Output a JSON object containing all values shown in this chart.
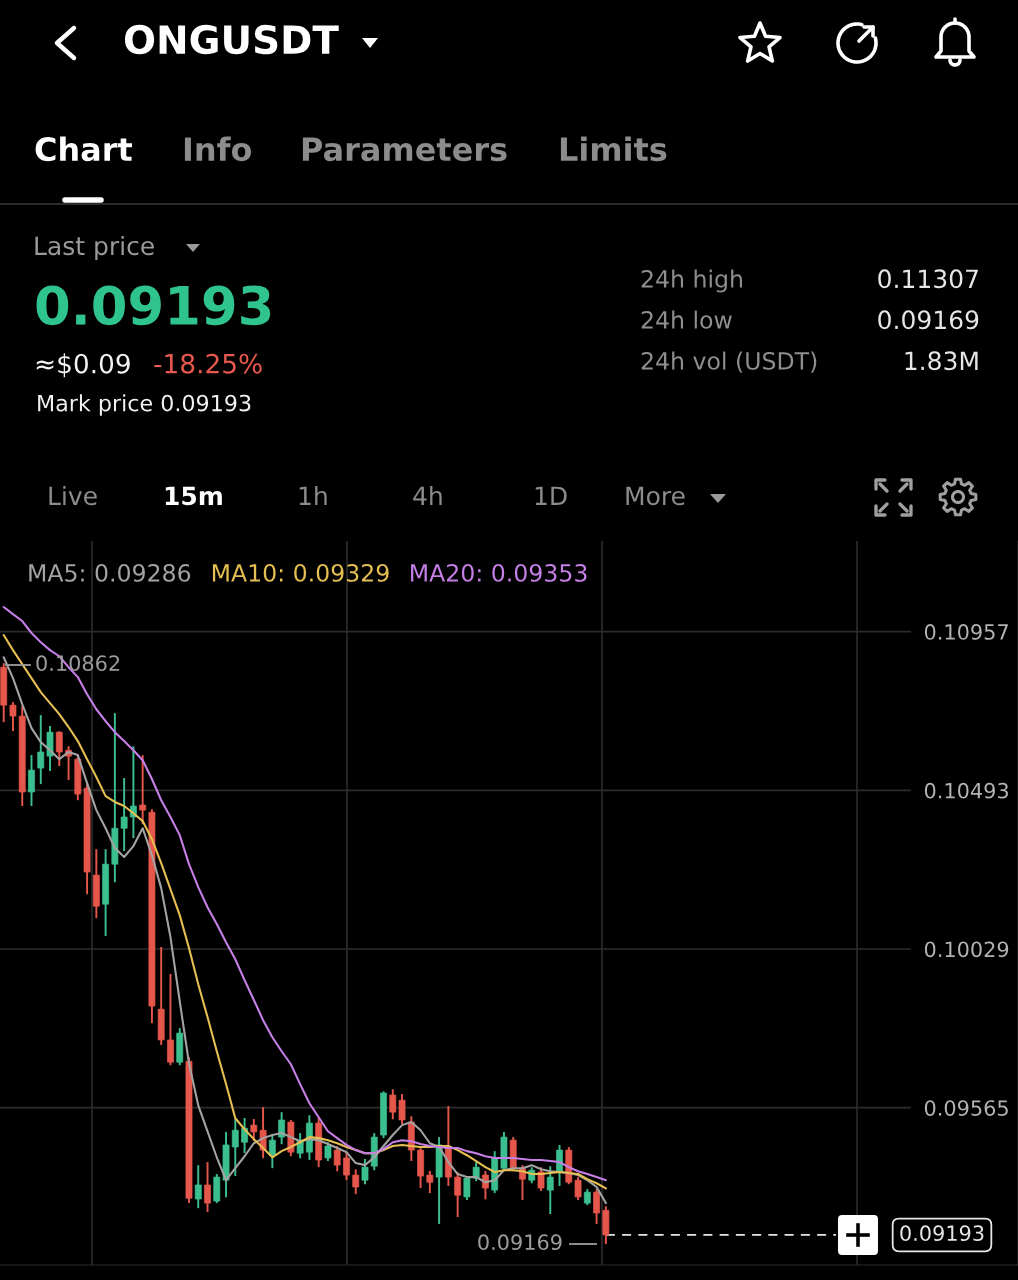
{
  "chart_data": {
    "type": "candlestick",
    "title": "ONGUSDT",
    "categories": [
      null,
      null,
      null,
      null,
      null,
      null,
      null,
      null,
      null,
      null,
      null,
      null,
      null,
      null,
      null,
      null,
      null,
      null,
      null,
      null,
      null,
      null,
      null,
      null,
      null,
      null,
      null,
      null,
      null,
      null,
      null,
      null,
      null,
      null,
      null,
      null,
      null,
      null,
      null,
      null,
      null,
      null,
      null,
      null,
      null,
      null,
      null,
      null,
      null,
      null,
      null,
      null,
      null,
      null,
      null,
      null,
      null,
      null,
      null,
      null,
      null,
      null,
      null,
      null,
      null,
      null
    ],
    "ohlc": [
      [
        0.10853,
        0.10862,
        0.10695,
        0.10742
      ],
      [
        0.10742,
        0.10748,
        0.10669,
        0.1071
      ],
      [
        0.1071,
        0.10736,
        0.1045,
        0.10488
      ],
      [
        0.10488,
        0.10593,
        0.1045,
        0.10552
      ],
      [
        0.10558,
        0.1071,
        0.10514,
        0.10605
      ],
      [
        0.10593,
        0.10678,
        0.10552,
        0.10663
      ],
      [
        0.10663,
        0.10663,
        0.10567,
        0.10605
      ],
      [
        0.1061,
        0.10619,
        0.10526,
        0.10593
      ],
      [
        0.10584,
        0.10593,
        0.10467,
        0.10482
      ],
      [
        0.10499,
        0.10514,
        0.10192,
        0.10254
      ],
      [
        0.10245,
        0.10318,
        0.10122,
        0.10154
      ],
      [
        0.1016,
        0.10318,
        0.1007,
        0.10277
      ],
      [
        0.10277,
        0.10716,
        0.10227,
        0.10382
      ],
      [
        0.10382,
        0.10526,
        0.10318,
        0.10415
      ],
      [
        0.10415,
        0.10619,
        0.10356,
        0.10447
      ],
      [
        0.1045,
        0.10593,
        0.10397,
        0.10435
      ],
      [
        0.10429,
        0.10435,
        0.09815,
        0.09862
      ],
      [
        0.09853,
        0.10032,
        0.09751,
        0.09763
      ],
      [
        0.09763,
        0.09953,
        0.09692,
        0.09698
      ],
      [
        0.09698,
        0.09795,
        0.09692,
        0.09783
      ],
      [
        0.09701,
        0.0971,
        0.09289,
        0.093
      ],
      [
        0.09298,
        0.09394,
        0.09274,
        0.09339
      ],
      [
        0.09339,
        0.09403,
        0.09263,
        0.09286
      ],
      [
        0.09292,
        0.09368,
        0.09289,
        0.09362
      ],
      [
        0.09353,
        0.09491,
        0.09306,
        0.09456
      ],
      [
        0.0945,
        0.09529,
        0.09368,
        0.09499
      ],
      [
        0.09464,
        0.09532,
        0.09435,
        0.09505
      ],
      [
        0.09514,
        0.09529,
        0.0947,
        0.09494
      ],
      [
        0.09499,
        0.09564,
        0.0942,
        0.09441
      ],
      [
        0.09426,
        0.09485,
        0.09391,
        0.0947
      ],
      [
        0.09479,
        0.09549,
        0.09461,
        0.09529
      ],
      [
        0.09523,
        0.09526,
        0.09426,
        0.09435
      ],
      [
        0.09432,
        0.09488,
        0.0942,
        0.0947
      ],
      [
        0.09435,
        0.0954,
        0.09415,
        0.0952
      ],
      [
        0.0952,
        0.09532,
        0.09394,
        0.09412
      ],
      [
        0.09418,
        0.09461,
        0.09412,
        0.09453
      ],
      [
        0.09441,
        0.0945,
        0.09382,
        0.09397
      ],
      [
        0.09418,
        0.09432,
        0.09356,
        0.09368
      ],
      [
        0.09368,
        0.09382,
        0.09315,
        0.09333
      ],
      [
        0.09353,
        0.09412,
        0.09344,
        0.09391
      ],
      [
        0.09394,
        0.09488,
        0.09385,
        0.09479
      ],
      [
        0.09485,
        0.0961,
        0.09479,
        0.09608
      ],
      [
        0.09602,
        0.09616,
        0.09534,
        0.09552
      ],
      [
        0.09587,
        0.09602,
        0.0952,
        0.09529
      ],
      [
        0.09523,
        0.09537,
        0.09412,
        0.09441
      ],
      [
        0.09441,
        0.09447,
        0.09333,
        0.09365
      ],
      [
        0.09368,
        0.09377,
        0.09318,
        0.09347
      ],
      [
        0.09362,
        0.09476,
        0.09228,
        0.09456
      ],
      [
        0.0945,
        0.09567,
        0.09339,
        0.09362
      ],
      [
        0.09362,
        0.09374,
        0.09248,
        0.09309
      ],
      [
        0.09304,
        0.09362,
        0.09298,
        0.09359
      ],
      [
        0.09359,
        0.09403,
        0.09353,
        0.09391
      ],
      [
        0.09368,
        0.09377,
        0.093,
        0.0933
      ],
      [
        0.09324,
        0.09435,
        0.09318,
        0.09418
      ],
      [
        0.09388,
        0.09491,
        0.09382,
        0.09479
      ],
      [
        0.0947,
        0.09476,
        0.09382,
        0.09388
      ],
      [
        0.09388,
        0.09394,
        0.09298,
        0.09356
      ],
      [
        0.09353,
        0.09388,
        0.09347,
        0.09382
      ],
      [
        0.09377,
        0.09388,
        0.09324,
        0.0933
      ],
      [
        0.09324,
        0.09391,
        0.09257,
        0.09362
      ],
      [
        0.09377,
        0.09453,
        0.09339,
        0.09441
      ],
      [
        0.09441,
        0.09447,
        0.09344,
        0.09347
      ],
      [
        0.09353,
        0.09359,
        0.09298,
        0.09304
      ],
      [
        0.09286,
        0.09324,
        0.09283,
        0.09318
      ],
      [
        0.09318,
        0.09324,
        0.09228,
        0.09257
      ],
      [
        0.09265,
        0.09274,
        0.09169,
        0.09193
      ]
    ],
    "colors": [
      "#e5564b",
      "#e5564b",
      "#e5564b",
      "#3cbf8f",
      "#3cbf8f",
      "#3cbf8f",
      "#e5564b",
      "#e5564b",
      "#e5564b",
      "#e5564b",
      "#e5564b",
      "#3cbf8f",
      "#3cbf8f",
      "#3cbf8f",
      "#3cbf8f",
      "#e5564b",
      "#e5564b",
      "#e5564b",
      "#e5564b",
      "#3cbf8f",
      "#e5564b",
      "#3cbf8f",
      "#e5564b",
      "#3cbf8f",
      "#3cbf8f",
      "#3cbf8f",
      "#3cbf8f",
      "#e5564b",
      "#e5564b",
      "#3cbf8f",
      "#3cbf8f",
      "#e5564b",
      "#3cbf8f",
      "#3cbf8f",
      "#e5564b",
      "#3cbf8f",
      "#e5564b",
      "#e5564b",
      "#e5564b",
      "#3cbf8f",
      "#3cbf8f",
      "#3cbf8f",
      "#e5564b",
      "#e5564b",
      "#e5564b",
      "#e5564b",
      "#e5564b",
      "#3cbf8f",
      "#e5564b",
      "#e5564b",
      "#3cbf8f",
      "#3cbf8f",
      "#e5564b",
      "#3cbf8f",
      "#3cbf8f",
      "#e5564b",
      "#e5564b",
      "#3cbf8f",
      "#e5564b",
      "#3cbf8f",
      "#3cbf8f",
      "#e5564b",
      "#e5564b",
      "#3cbf8f",
      "#e5564b",
      "#e5564b"
    ],
    "series": [
      {
        "name": "MA5: 0.09286",
        "type": "line",
        "color": "#a3a3a3",
        "values": [
          0.10882,
          0.10821,
          0.10745,
          0.10675,
          0.10634,
          0.1061,
          0.10584,
          0.10605,
          0.10596,
          0.10514,
          0.10435,
          0.10382,
          0.10324,
          0.10298,
          0.1033,
          0.10382,
          0.10303,
          0.10207,
          0.10064,
          0.09877,
          0.09695,
          0.09572,
          0.09496,
          0.0942,
          0.09353,
          0.09388,
          0.09423,
          0.09461,
          0.09476,
          0.09485,
          0.09491,
          0.09479,
          0.09467,
          0.09473,
          0.0947,
          0.09459,
          0.09447,
          0.09435,
          0.09403,
          0.09397,
          0.0942,
          0.09453,
          0.09485,
          0.09514,
          0.09523,
          0.09499,
          0.09461,
          0.0945,
          0.09406,
          0.09371,
          0.09362,
          0.09362,
          0.09347,
          0.09353,
          0.09382,
          0.09388,
          0.09388,
          0.09397,
          0.09385,
          0.09379,
          0.09377,
          0.09374,
          0.09368,
          0.09353,
          0.09333,
          0.09286
        ]
      },
      {
        "name": "MA10: 0.09329",
        "type": "line",
        "color": "#e6bf52",
        "values": [
          0.10947,
          0.10903,
          0.10862,
          0.10821,
          0.1078,
          0.10748,
          0.10716,
          0.10678,
          0.10637,
          0.10584,
          0.10532,
          0.10476,
          0.10459,
          0.10447,
          0.10426,
          0.10403,
          0.1035,
          0.1028,
          0.10204,
          0.10128,
          0.10032,
          0.09926,
          0.0983,
          0.0973,
          0.09634,
          0.09534,
          0.09502,
          0.09473,
          0.09447,
          0.0942,
          0.09438,
          0.0945,
          0.09464,
          0.09479,
          0.09476,
          0.0947,
          0.09461,
          0.0945,
          0.09441,
          0.09432,
          0.09432,
          0.09441,
          0.09453,
          0.09456,
          0.09453,
          0.0945,
          0.0945,
          0.09453,
          0.09453,
          0.09441,
          0.09426,
          0.09409,
          0.09391,
          0.09377,
          0.09382,
          0.09382,
          0.09379,
          0.09371,
          0.09371,
          0.09374,
          0.09377,
          0.09374,
          0.09371,
          0.09356,
          0.09344,
          0.09329
        ]
      },
      {
        "name": "MA20: 0.09353",
        "type": "line",
        "color": "#c57fe6",
        "values": [
          0.11029,
          0.11008,
          0.10988,
          0.10953,
          0.10926,
          0.10903,
          0.10885,
          0.10853,
          0.10824,
          0.10774,
          0.1073,
          0.10695,
          0.10663,
          0.10637,
          0.1061,
          0.10581,
          0.10526,
          0.10464,
          0.10415,
          0.10362,
          0.10277,
          0.1021,
          0.10151,
          0.10102,
          0.10049,
          0.09999,
          0.09938,
          0.0988,
          0.09821,
          0.09771,
          0.0973,
          0.09692,
          0.09634,
          0.09578,
          0.09537,
          0.09496,
          0.09476,
          0.09456,
          0.09441,
          0.09432,
          0.09432,
          0.09444,
          0.09464,
          0.0947,
          0.09467,
          0.09459,
          0.09453,
          0.0945,
          0.09447,
          0.09447,
          0.09438,
          0.09432,
          0.09423,
          0.09418,
          0.09418,
          0.09418,
          0.09415,
          0.09412,
          0.09412,
          0.09409,
          0.09406,
          0.09391,
          0.09379,
          0.09371,
          0.09362,
          0.09353
        ]
      }
    ],
    "ylim": [
      0.09105,
      0.11222
    ],
    "yticks": [
      0.09565,
      0.10029,
      0.10493,
      0.10957
    ],
    "grid": "y",
    "tick_labels": "y",
    "annotations": [
      "Chart",
      "Info",
      "Parameters",
      "Limits",
      "Last price",
      "0.09193",
      "≈$0.09",
      "-18.25%",
      "Mark price 0.09193",
      "24h high",
      "0.11307",
      "24h low",
      "0.09169",
      "24h vol (USDT)",
      "1.83M",
      "Live",
      "15m",
      "1h",
      "4h",
      "1D",
      "More",
      "0.10862",
      "0.09169",
      "0.09193"
    ]
  }
}
